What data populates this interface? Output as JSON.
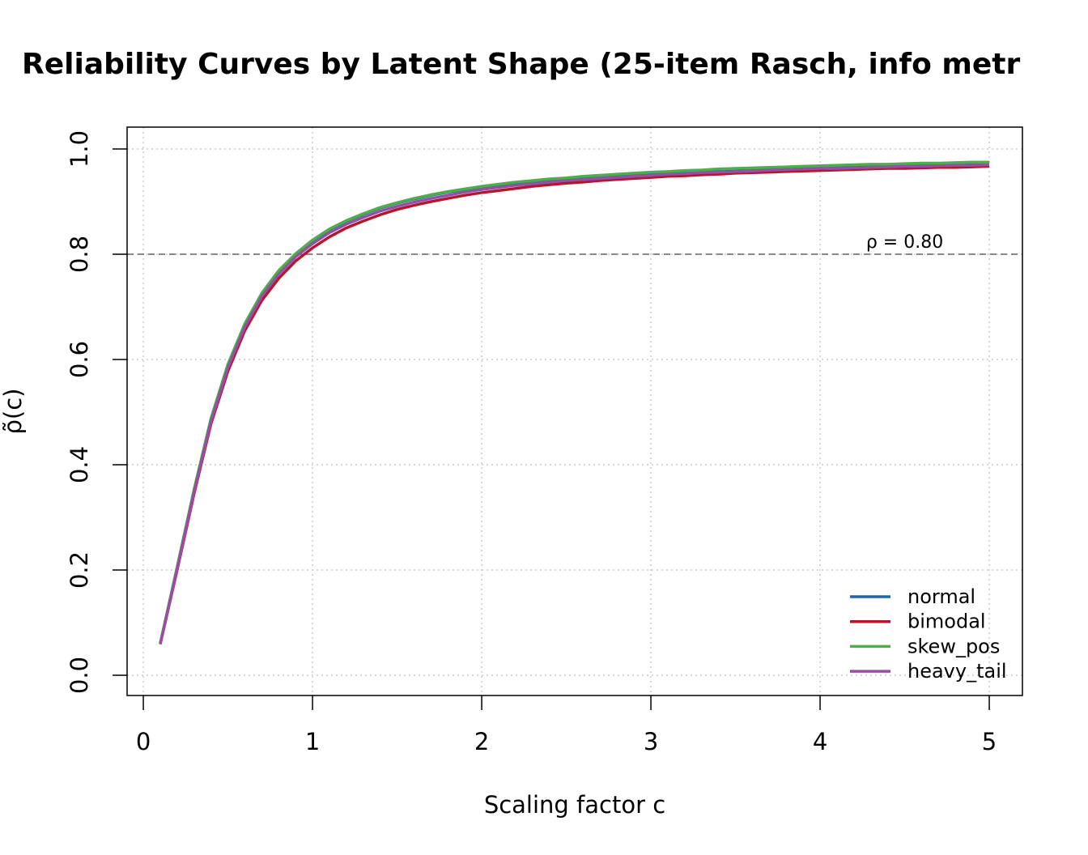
{
  "chart_data": {
    "type": "line",
    "title": "Reliability Curves by Latent Shape (25-item Rasch, info metr",
    "x_label": "Scaling factor c",
    "y_label": "ρ̃(c)",
    "x": [
      0.1,
      0.2,
      0.3,
      0.4,
      0.5,
      0.6,
      0.7,
      0.8,
      0.9,
      1.0,
      1.1,
      1.2,
      1.3,
      1.4,
      1.5,
      1.6,
      1.7,
      1.8,
      1.9,
      2.0,
      2.1,
      2.2,
      2.3,
      2.4,
      2.5,
      2.6,
      2.7,
      2.8,
      2.9,
      3.0,
      3.1,
      3.2,
      3.3,
      3.4,
      3.5,
      3.6,
      3.7,
      3.8,
      3.9,
      4.0,
      4.1,
      4.2,
      4.3,
      4.4,
      4.5,
      4.6,
      4.7,
      4.8,
      4.9,
      5.0
    ],
    "series": [
      {
        "name": "normal",
        "color": "#2166ac",
        "values": [
          0.06,
          0.205,
          0.352,
          0.487,
          0.59,
          0.667,
          0.725,
          0.768,
          0.8,
          0.826,
          0.847,
          0.863,
          0.876,
          0.888,
          0.897,
          0.905,
          0.912,
          0.918,
          0.923,
          0.928,
          0.932,
          0.936,
          0.939,
          0.942,
          0.944,
          0.947,
          0.949,
          0.951,
          0.953,
          0.955,
          0.956,
          0.958,
          0.959,
          0.961,
          0.962,
          0.963,
          0.964,
          0.965,
          0.966,
          0.967,
          0.968,
          0.969,
          0.97,
          0.97,
          0.971,
          0.972,
          0.972,
          0.973,
          0.974,
          0.974
        ]
      },
      {
        "name": "bimodal",
        "color": "#b2182b",
        "values": [
          0.059,
          0.2,
          0.345,
          0.478,
          0.578,
          0.655,
          0.712,
          0.754,
          0.787,
          0.812,
          0.833,
          0.85,
          0.863,
          0.875,
          0.885,
          0.893,
          0.9,
          0.906,
          0.912,
          0.917,
          0.921,
          0.925,
          0.929,
          0.932,
          0.935,
          0.937,
          0.94,
          0.942,
          0.944,
          0.946,
          0.948,
          0.949,
          0.951,
          0.952,
          0.954,
          0.955,
          0.956,
          0.957,
          0.958,
          0.959,
          0.96,
          0.961,
          0.962,
          0.963,
          0.963,
          0.964,
          0.965,
          0.965,
          0.966,
          0.967
        ]
      },
      {
        "name": "skew_pos",
        "color": "#4daf4a",
        "values": [
          0.06,
          0.206,
          0.353,
          0.488,
          0.591,
          0.668,
          0.726,
          0.769,
          0.801,
          0.827,
          0.848,
          0.864,
          0.877,
          0.889,
          0.898,
          0.906,
          0.913,
          0.919,
          0.924,
          0.929,
          0.933,
          0.937,
          0.94,
          0.943,
          0.945,
          0.948,
          0.95,
          0.952,
          0.954,
          0.956,
          0.957,
          0.959,
          0.96,
          0.962,
          0.963,
          0.964,
          0.965,
          0.966,
          0.967,
          0.968,
          0.969,
          0.97,
          0.971,
          0.971,
          0.972,
          0.973,
          0.973,
          0.974,
          0.975,
          0.975
        ]
      },
      {
        "name": "heavy_tail",
        "color": "#984ea3",
        "values": [
          0.06,
          0.203,
          0.349,
          0.483,
          0.585,
          0.662,
          0.72,
          0.762,
          0.795,
          0.82,
          0.841,
          0.857,
          0.87,
          0.882,
          0.891,
          0.899,
          0.906,
          0.912,
          0.918,
          0.923,
          0.927,
          0.931,
          0.934,
          0.937,
          0.94,
          0.942,
          0.944,
          0.946,
          0.948,
          0.95,
          0.952,
          0.953,
          0.955,
          0.956,
          0.957,
          0.958,
          0.96,
          0.961,
          0.962,
          0.963,
          0.963,
          0.964,
          0.965,
          0.966,
          0.967,
          0.967,
          0.968,
          0.969,
          0.969,
          0.97
        ]
      }
    ],
    "ref_line": {
      "value": 0.8,
      "label": "ρ = 0.80",
      "color": "#666666"
    },
    "xlim": [
      -0.096,
      5.196
    ],
    "ylim": [
      -0.0385,
      1.0415
    ],
    "xticks": [
      0,
      1,
      2,
      3,
      4,
      5
    ],
    "yticks": [
      {
        "value": 0,
        "label": "0.0"
      },
      0.2,
      0.4,
      0.6,
      0.8,
      {
        "value": 1,
        "label": "1.0"
      }
    ],
    "grid": true,
    "legend": "bottom-right"
  }
}
